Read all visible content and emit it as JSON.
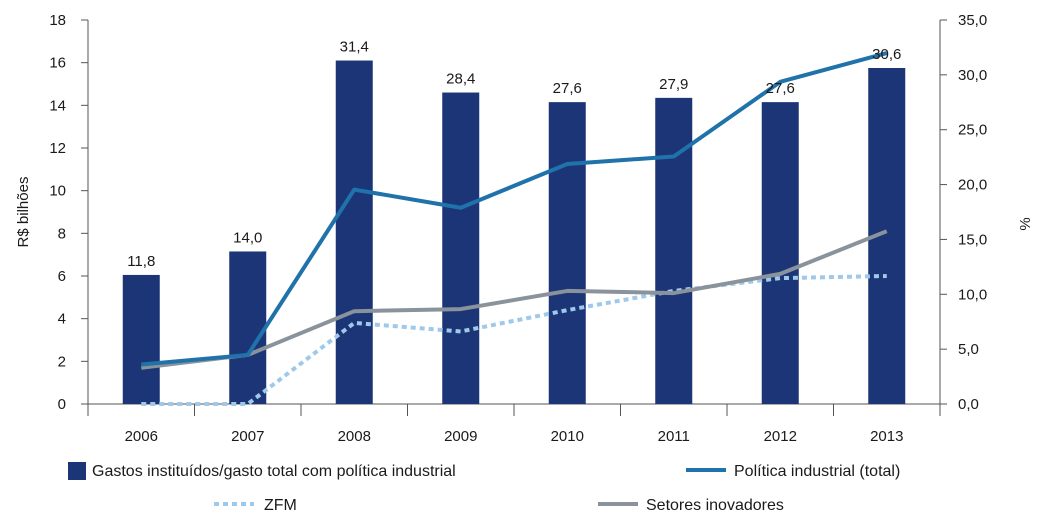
{
  "chart_data": {
    "type": "bar",
    "categories": [
      "2006",
      "2007",
      "2008",
      "2009",
      "2010",
      "2011",
      "2012",
      "2013"
    ],
    "ylabel": "R$ bilhões",
    "y2label": "%",
    "ylim": [
      0,
      18
    ],
    "y2lim": [
      0,
      35
    ],
    "y_ticks": [
      "0",
      "2",
      "4",
      "6",
      "8",
      "10",
      "12",
      "14",
      "16",
      "18"
    ],
    "y2_ticks": [
      "0,0",
      "5,0",
      "10,0",
      "15,0",
      "20,0",
      "25,0",
      "30,0",
      "35,0"
    ],
    "grid": false,
    "legend_position": "bottom",
    "series": [
      {
        "name": "Gastos instituídos/gasto total com política industrial",
        "kind": "bar",
        "axis": "left",
        "values": [
          6.05,
          7.15,
          16.1,
          14.6,
          14.15,
          14.35,
          14.15,
          15.75
        ],
        "data_labels": [
          "11,8",
          "14,0",
          "31,4",
          "28,4",
          "27,6",
          "27,9",
          "27,6",
          "30,6"
        ],
        "color": "#1b3577"
      },
      {
        "name": "Política industrial (total)",
        "kind": "line",
        "axis": "left",
        "values": [
          1.85,
          2.3,
          10.05,
          9.2,
          11.25,
          11.6,
          15.1,
          16.45
        ],
        "color": "#1f72aa"
      },
      {
        "name": "ZFM",
        "kind": "line-dotted",
        "axis": "left",
        "values": [
          0.0,
          0.0,
          3.8,
          3.4,
          4.4,
          5.3,
          5.9,
          6.0
        ],
        "color": "#9fc9ea"
      },
      {
        "name": "Setores inovadores",
        "kind": "line",
        "axis": "left",
        "values": [
          1.7,
          2.3,
          4.35,
          4.45,
          5.3,
          5.2,
          6.1,
          8.1
        ],
        "color": "#8a929c"
      }
    ]
  }
}
